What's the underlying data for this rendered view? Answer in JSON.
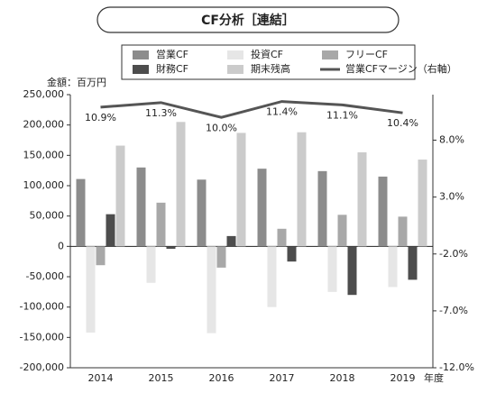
{
  "chart_data": {
    "type": "bar",
    "title": "CF分析［連結］",
    "y_label": "金額：百万円",
    "x_label": "年度",
    "categories": [
      "2014",
      "2015",
      "2016",
      "2017",
      "2018",
      "2019"
    ],
    "series": [
      {
        "name": "営業CF",
        "color": "#8c8c8c",
        "values": [
          111000,
          130000,
          110000,
          128000,
          124000,
          115000
        ]
      },
      {
        "name": "投資CF",
        "color": "#e6e6e6",
        "values": [
          -142000,
          -60000,
          -143000,
          -100000,
          -75000,
          -67000
        ]
      },
      {
        "name": "フリーCF",
        "color": "#a8a8a8",
        "values": [
          -31000,
          72000,
          -35000,
          29000,
          52000,
          49000
        ]
      },
      {
        "name": "財務CF",
        "color": "#4d4d4d",
        "values": [
          53000,
          -4000,
          17000,
          -25000,
          -80000,
          -55000
        ]
      },
      {
        "name": "期末残高",
        "color": "#cbcbcb",
        "values": [
          166000,
          205000,
          187000,
          188000,
          155000,
          143000
        ]
      },
      {
        "name": "営業CFマージン（右軸）",
        "color": "#555555",
        "type": "line",
        "axis": "y2",
        "values": [
          10.9,
          11.3,
          10.0,
          11.4,
          11.1,
          10.4
        ],
        "value_labels": [
          "10.9%",
          "11.3%",
          "10.0%",
          "11.4%",
          "11.1%",
          "10.4%"
        ]
      }
    ],
    "ylim": [
      -200000,
      250000
    ],
    "yticks": [
      {
        "value": -200000,
        "label": "-200,000"
      },
      {
        "value": -150000,
        "label": "-150,000"
      },
      {
        "value": -100000,
        "label": "-100,000"
      },
      {
        "value": -50000,
        "label": "-50,000"
      },
      0,
      {
        "value": 50000,
        "label": "50,000"
      },
      {
        "value": 100000,
        "label": "100,000"
      },
      {
        "value": 150000,
        "label": "150,000"
      },
      {
        "value": 200000,
        "label": "200,000"
      },
      {
        "value": 250000,
        "label": "250,000"
      }
    ],
    "y2lim": [
      -12,
      12
    ],
    "y2ticks": [
      {
        "value": -12,
        "label": "-12.0%"
      },
      {
        "value": -7,
        "label": "-7.0%"
      },
      {
        "value": -2,
        "label": "-2.0%"
      },
      {
        "value": 3,
        "label": "3.0%"
      },
      {
        "value": 8,
        "label": "8.0%"
      }
    ],
    "grid": false
  }
}
